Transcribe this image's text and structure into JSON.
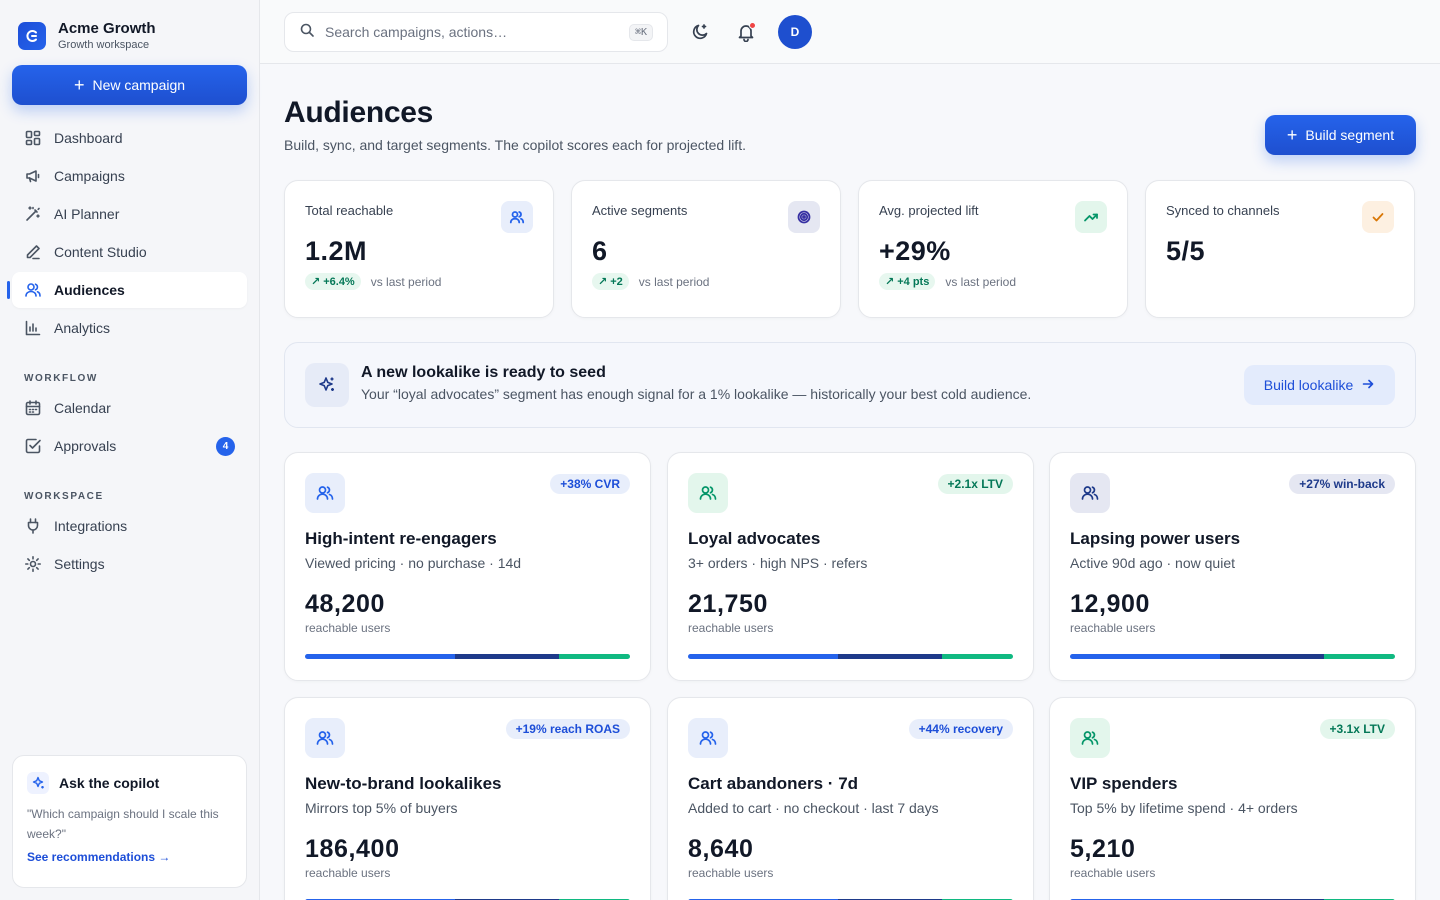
{
  "brand": {
    "name": "Acme Growth",
    "subtitle": "Growth workspace"
  },
  "sidebar": {
    "new_campaign_label": "New campaign",
    "items": [
      {
        "label": "Dashboard",
        "icon": "grid-icon"
      },
      {
        "label": "Campaigns",
        "icon": "megaphone-icon"
      },
      {
        "label": "AI Planner",
        "icon": "magic-wand-icon"
      },
      {
        "label": "Content Studio",
        "icon": "pen-icon"
      },
      {
        "label": "Audiences",
        "icon": "users-icon",
        "active": true
      },
      {
        "label": "Analytics",
        "icon": "bar-chart-icon"
      }
    ],
    "workflow_title": "WORKFLOW",
    "workflow_items": [
      {
        "label": "Calendar",
        "icon": "calendar-icon"
      },
      {
        "label": "Approvals",
        "icon": "checkbox-icon",
        "badge": "4"
      }
    ],
    "workspace_title": "WORKSPACE",
    "workspace_items": [
      {
        "label": "Integrations",
        "icon": "plug-icon"
      },
      {
        "label": "Settings",
        "icon": "gear-icon"
      }
    ],
    "copilot": {
      "title": "Ask the copilot",
      "question": "\"Which campaign should I scale this week?\"",
      "link": "See recommendations →"
    }
  },
  "topbar": {
    "search_placeholder": "Search campaigns, actions…",
    "shortcut": "⌘K",
    "avatar_initial": "D"
  },
  "page": {
    "title": "Audiences",
    "subtitle": "Build, sync, and target segments. The copilot scores each for projected lift.",
    "build_segment_label": "Build segment"
  },
  "stats": [
    {
      "label": "Total reachable",
      "value": "1.2M",
      "delta": "+6.4%",
      "note": "vs last period",
      "icon": "users-icon",
      "icon_bg": "#e8eefb",
      "icon_color": "#2563eb"
    },
    {
      "label": "Active segments",
      "value": "6",
      "delta": "+2",
      "note": "vs last period",
      "icon": "target-icon",
      "icon_bg": "#e5e7f2",
      "icon_color": "#3730a3"
    },
    {
      "label": "Avg. projected lift",
      "value": "+29%",
      "delta": "+4 pts",
      "note": "vs last period",
      "icon": "trend-up-icon",
      "icon_bg": "#e3f6ec",
      "icon_color": "#059669"
    },
    {
      "label": "Synced to channels",
      "value": "5/5",
      "delta": "",
      "note": "",
      "icon": "check-icon",
      "icon_bg": "#fdf0e1",
      "icon_color": "#d97706"
    }
  ],
  "banner": {
    "title": "A new lookalike is ready to seed",
    "text": "Your “loyal advocates” segment has enough signal for a 1% lookalike — historically your best cold audience.",
    "button": "Build lookalike"
  },
  "segments": [
    {
      "name": "High-intent re-engagers",
      "desc": "Viewed pricing · no purchase · 14d",
      "count": "48,200",
      "unit": "reachable users",
      "badge": "+38% CVR",
      "tone": "blue"
    },
    {
      "name": "Loyal advocates",
      "desc": "3+ orders · high NPS · refers",
      "count": "21,750",
      "unit": "reachable users",
      "badge": "+2.1x LTV",
      "tone": "green"
    },
    {
      "name": "Lapsing power users",
      "desc": "Active 90d ago · now quiet",
      "count": "12,900",
      "unit": "reachable users",
      "badge": "+27% win-back",
      "tone": "navy"
    },
    {
      "name": "New-to-brand lookalikes",
      "desc": "Mirrors top 5% of buyers",
      "count": "186,400",
      "unit": "reachable users",
      "badge": "+19% reach ROAS",
      "tone": "blue"
    },
    {
      "name": "Cart abandoners · 7d",
      "desc": "Added to cart · no checkout · last 7 days",
      "count": "8,640",
      "unit": "reachable users",
      "badge": "+44% recovery",
      "tone": "blue"
    },
    {
      "name": "VIP spenders",
      "desc": "Top 5% by lifetime spend · 4+ orders",
      "count": "5,210",
      "unit": "reachable users",
      "badge": "+3.1x LTV",
      "tone": "green"
    }
  ],
  "colors": {
    "accent": "#2563eb",
    "accent_dark": "#1e3a8a",
    "success": "#10b981"
  }
}
